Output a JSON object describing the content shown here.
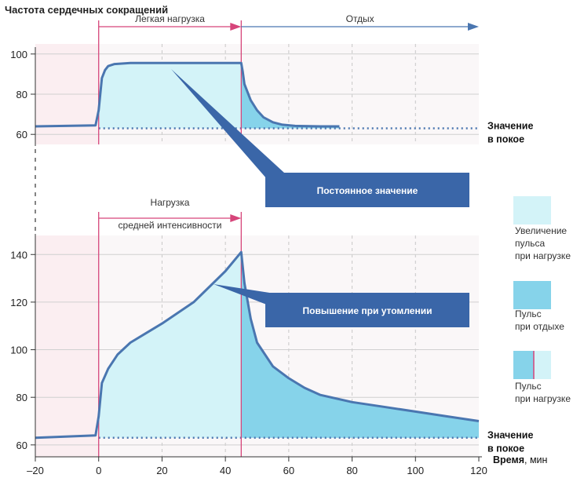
{
  "title": "Частота сердечных сокращений",
  "xlabel_bold": "Время",
  "xlabel_unit": ", мин",
  "colors": {
    "line": "#4a76b0",
    "fill_load": "#d3f3f8",
    "fill_rest": "#86d3ea",
    "baseline": "#4a76b0",
    "callout": "#3a66a8",
    "marker": "#d6457a",
    "rest_bg": "#fbeef1",
    "plot_bg": "#faf7f8",
    "grid": "#c8c8c8"
  },
  "chart_data": [
    {
      "type": "line",
      "title": "",
      "xlim": [
        -20,
        120
      ],
      "ylim": [
        55,
        105
      ],
      "yticks": [
        60,
        80,
        100
      ],
      "x": [
        -20,
        -1,
        0,
        1,
        2,
        3,
        5,
        10,
        20,
        30,
        40,
        45,
        45.5,
        46,
        48,
        50,
        52,
        55,
        58,
        62,
        70,
        76
      ],
      "y": [
        64,
        64.5,
        72,
        88,
        92,
        94,
        95,
        95.5,
        95.5,
        95.5,
        95.5,
        95.5,
        91,
        85,
        77,
        72,
        68.5,
        66,
        64.8,
        64.2,
        64,
        64
      ],
      "resting_value": 63,
      "phases": [
        {
          "label": "Легкая нагрузка",
          "start": 0,
          "end": 45
        },
        {
          "label": "Отдых",
          "start": 45,
          "end": 120
        }
      ],
      "resting_label": [
        "Значение",
        "в покое"
      ],
      "callout": "Постоянное значение"
    },
    {
      "type": "line",
      "title": "",
      "xlim": [
        -20,
        120
      ],
      "ylim": [
        55,
        148
      ],
      "yticks": [
        60,
        80,
        100,
        120,
        140
      ],
      "x": [
        -20,
        -1,
        0,
        1,
        3,
        6,
        10,
        15,
        20,
        30,
        40,
        45,
        46,
        48,
        50,
        55,
        60,
        65,
        70,
        80,
        90,
        100,
        110,
        120
      ],
      "y": [
        63,
        64,
        72,
        86,
        92,
        98,
        103,
        107,
        111,
        120,
        133,
        141,
        128,
        113,
        103,
        93,
        88,
        84,
        81,
        78,
        76,
        74,
        72,
        70
      ],
      "resting_value": 63,
      "phases": [
        {
          "label": [
            "Нагрузка",
            "средней интенсивности"
          ],
          "start": 0,
          "end": 45
        }
      ],
      "resting_label": [
        "Значение",
        "в покое"
      ],
      "callout": "Повышение при утомлении"
    }
  ],
  "xticks": [
    -20,
    0,
    20,
    40,
    60,
    80,
    100,
    120
  ],
  "xtick_labels": [
    "–20",
    "0",
    "20",
    "40",
    "60",
    "80",
    "100",
    "120"
  ],
  "legend": [
    {
      "kind": "load",
      "lines": [
        "Увеличение",
        "пульса",
        "при нагрузке"
      ]
    },
    {
      "kind": "rest",
      "lines": [
        "Пульс",
        "при отдыхе"
      ]
    },
    {
      "kind": "both",
      "lines": [
        "Пульс",
        "при нагрузке"
      ]
    }
  ]
}
